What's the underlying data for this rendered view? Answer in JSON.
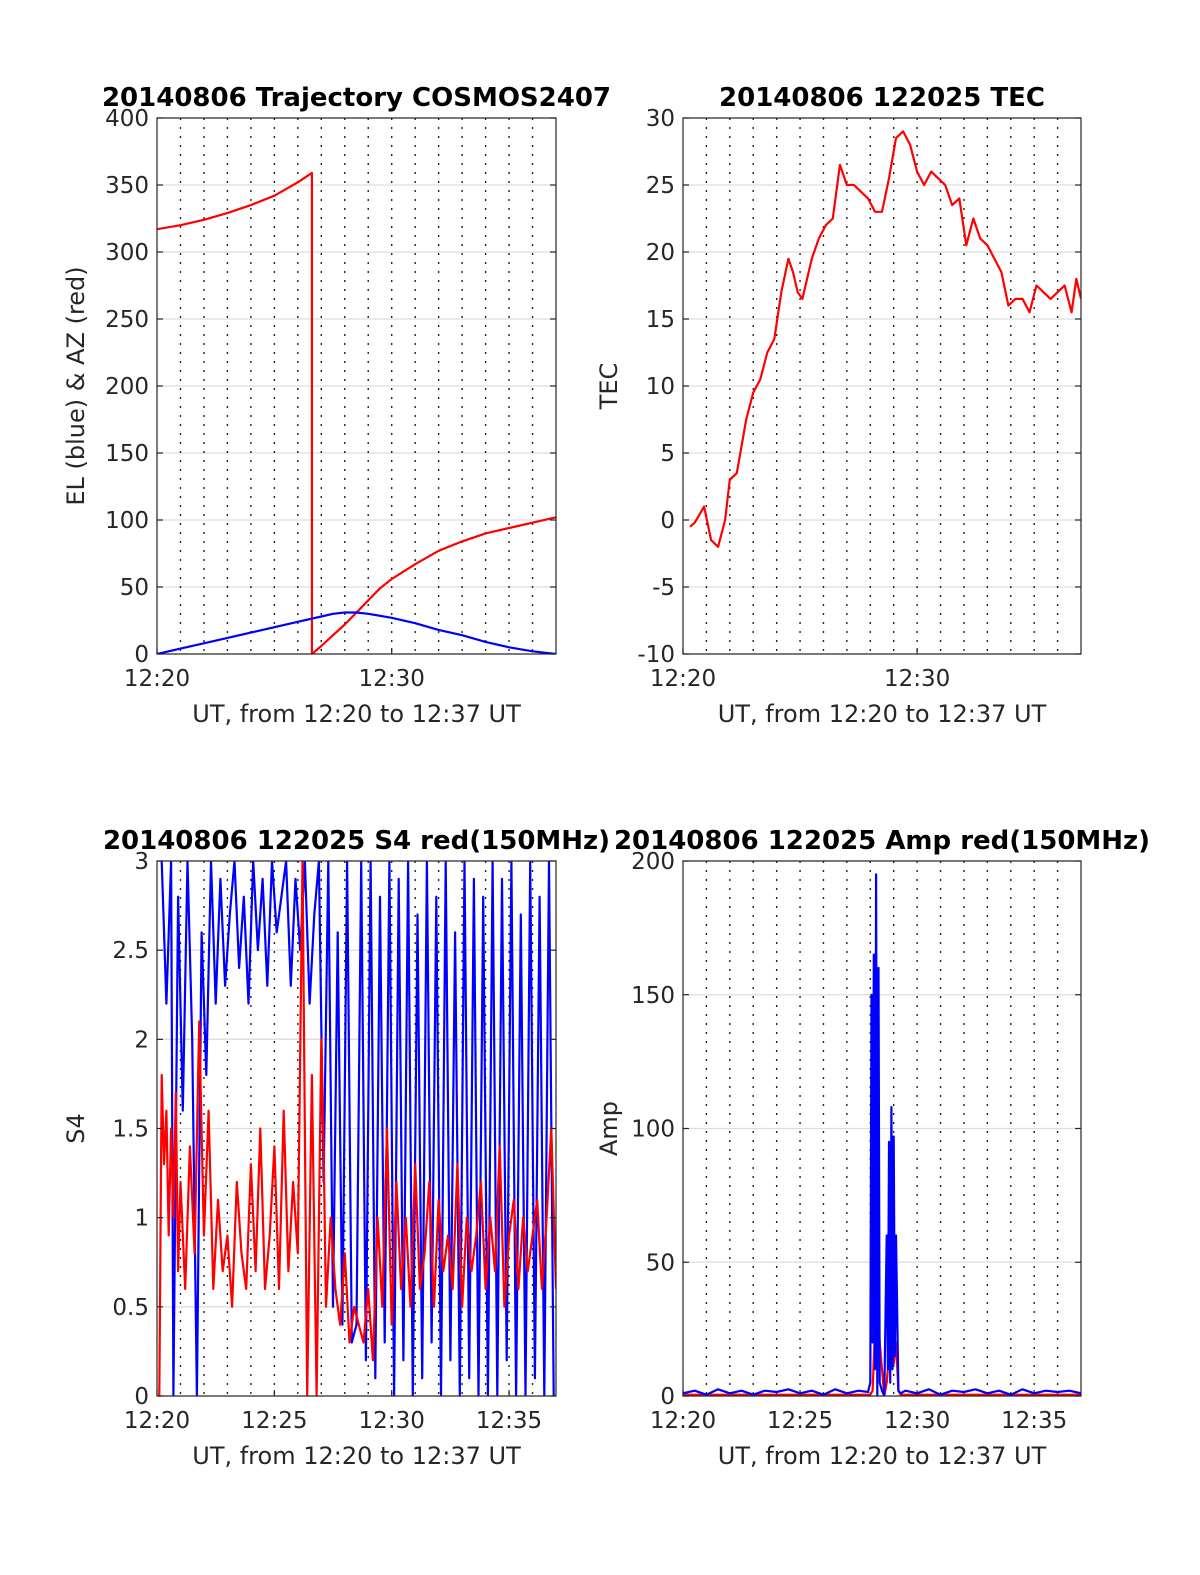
{
  "chart_data": [
    {
      "type": "line",
      "title": "20140806 Trajectory COSMOS2407",
      "xlabel": "UT, from 12:20 to 12:37 UT",
      "ylabel": "EL (blue) & AZ (red)",
      "xlim": [
        0,
        17
      ],
      "ylim": [
        0,
        400
      ],
      "xtick_values": [
        0,
        10
      ],
      "xtick_labels": [
        "12:20",
        "12:30"
      ],
      "ytick_values": [
        0,
        50,
        100,
        150,
        200,
        250,
        300,
        350,
        400
      ],
      "ytick_labels": [
        "0",
        "50",
        "100",
        "150",
        "200",
        "250",
        "300",
        "350",
        "400"
      ],
      "grid": true,
      "series": [
        {
          "color": "#ff0000",
          "x": [
            0,
            1,
            2,
            3,
            4,
            5,
            6,
            6.6,
            6.6,
            7,
            7.5,
            8,
            8.5,
            9,
            9.5,
            10,
            11,
            12,
            13,
            14,
            15,
            16,
            17
          ],
          "y": [
            317,
            320,
            324,
            329,
            335,
            342,
            352,
            359,
            0,
            6,
            14,
            22,
            31,
            40,
            49,
            56,
            67,
            77,
            84,
            90,
            94,
            98,
            102
          ]
        },
        {
          "color": "#0000ff",
          "x": [
            0,
            1,
            2,
            3,
            4,
            5,
            6,
            7,
            7.5,
            8,
            8.5,
            9,
            10,
            11,
            12,
            13,
            14,
            15,
            16,
            17
          ],
          "y": [
            0,
            4,
            8,
            12,
            16,
            20,
            24,
            28,
            30,
            31,
            31,
            30,
            27,
            23,
            18,
            14,
            9,
            5,
            2,
            0
          ]
        }
      ]
    },
    {
      "type": "line",
      "title": "20140806 122025 TEC",
      "xlabel": "UT, from 12:20 to 12:37 UT",
      "ylabel": "TEC",
      "xlim": [
        0,
        17
      ],
      "ylim": [
        -10,
        30
      ],
      "xtick_values": [
        0,
        10
      ],
      "xtick_labels": [
        "12:20",
        "12:30"
      ],
      "ytick_values": [
        -10,
        -5,
        0,
        5,
        10,
        15,
        20,
        25,
        30
      ],
      "ytick_labels": [
        "-10",
        "-5",
        "0",
        "5",
        "10",
        "15",
        "20",
        "25",
        "30"
      ],
      "grid": true,
      "series": [
        {
          "color": "#ff0000",
          "x": [
            0.3,
            0.5,
            0.9,
            1.2,
            1.5,
            1.8,
            2.0,
            2.3,
            2.5,
            2.7,
            3.0,
            3.3,
            3.6,
            3.9,
            4.2,
            4.5,
            4.7,
            4.9,
            5.1,
            5.3,
            5.5,
            5.8,
            6.1,
            6.4,
            6.7,
            7.0,
            7.3,
            7.6,
            7.9,
            8.2,
            8.5,
            8.8,
            9.1,
            9.4,
            9.7,
            10.0,
            10.3,
            10.6,
            10.9,
            11.2,
            11.5,
            11.8,
            12.1,
            12.4,
            12.7,
            13.0,
            13.3,
            13.6,
            13.9,
            14.2,
            14.5,
            14.8,
            15.1,
            15.4,
            15.7,
            16.0,
            16.3,
            16.6,
            16.8,
            17.0
          ],
          "y": [
            -0.5,
            -0.2,
            1.0,
            -1.5,
            -2.0,
            0.0,
            3.0,
            3.5,
            5.5,
            7.5,
            9.5,
            10.5,
            12.5,
            13.5,
            17.0,
            19.5,
            18.5,
            17.0,
            16.5,
            18.0,
            19.5,
            21.0,
            22.0,
            22.5,
            26.5,
            25.0,
            25.0,
            24.5,
            24.0,
            23.0,
            23.0,
            25.5,
            28.5,
            29.0,
            28.0,
            26.0,
            25.0,
            26.0,
            25.5,
            25.0,
            23.5,
            24.0,
            20.5,
            22.5,
            21.0,
            20.5,
            19.5,
            18.5,
            16.0,
            16.5,
            16.5,
            15.5,
            17.5,
            17.0,
            16.5,
            17.0,
            17.5,
            15.5,
            18.0,
            16.5
          ]
        }
      ]
    },
    {
      "type": "line",
      "title": "20140806 122025 S4 red(150MHz)",
      "xlabel": "UT, from 12:20 to 12:37 UT",
      "ylabel": "S4",
      "xlim": [
        0,
        17
      ],
      "ylim": [
        0,
        3
      ],
      "xtick_values": [
        0,
        5,
        10,
        15
      ],
      "xtick_labels": [
        "12:20",
        "12:25",
        "12:30",
        "12:35"
      ],
      "ytick_values": [
        0,
        0.5,
        1,
        1.5,
        2,
        2.5,
        3
      ],
      "ytick_labels": [
        "0",
        "0.5",
        "1",
        "1.5",
        "2",
        "2.5",
        "3"
      ],
      "grid": true,
      "series": [
        {
          "color": "#0000ff",
          "x": [
            0.2,
            0.4,
            0.6,
            0.7,
            0.9,
            1.1,
            1.3,
            1.5,
            1.7,
            1.9,
            2.1,
            2.3,
            2.5,
            2.7,
            2.9,
            3.1,
            3.3,
            3.5,
            3.7,
            3.9,
            4.1,
            4.3,
            4.5,
            4.7,
            4.9,
            5.1,
            5.3,
            5.5,
            5.7,
            5.9,
            6.1,
            6.3,
            6.5,
            6.7,
            6.9,
            7.1,
            7.3,
            7.5,
            7.7,
            7.9,
            8.1,
            8.3,
            8.5,
            8.7,
            8.9,
            9.1,
            9.3,
            9.5,
            9.7,
            9.9,
            10.1,
            10.3,
            10.5,
            10.7,
            10.9,
            11.1,
            11.3,
            11.5,
            11.7,
            11.9,
            12.1,
            12.3,
            12.5,
            12.7,
            12.9,
            13.1,
            13.3,
            13.5,
            13.7,
            13.9,
            14.1,
            14.3,
            14.5,
            14.7,
            14.9,
            15.1,
            15.3,
            15.5,
            15.7,
            15.9,
            16.1,
            16.3,
            16.5,
            16.7,
            16.9
          ],
          "y": [
            3.0,
            2.2,
            3.0,
            0.0,
            2.8,
            1.6,
            3.0,
            2.0,
            0.0,
            2.6,
            1.8,
            3.0,
            2.2,
            2.9,
            2.3,
            2.7,
            3.0,
            2.4,
            2.8,
            2.2,
            3.0,
            2.5,
            2.9,
            2.3,
            3.0,
            2.6,
            2.8,
            3.0,
            2.3,
            2.9,
            2.5,
            3.0,
            2.2,
            2.7,
            3.0,
            1.2,
            3.0,
            0.5,
            2.6,
            0.4,
            3.0,
            0.3,
            0.4,
            3.0,
            0.2,
            3.0,
            0.1,
            2.8,
            0.3,
            3.0,
            0.0,
            2.9,
            0.2,
            3.0,
            0.0,
            2.7,
            0.1,
            3.0,
            0.3,
            2.8,
            0.0,
            3.0,
            0.2,
            2.6,
            0.0,
            3.0,
            0.1,
            2.9,
            0.0,
            2.8,
            0.0,
            3.0,
            0.0,
            2.9,
            0.2,
            3.0,
            0.0,
            2.7,
            0.0,
            3.0,
            0.1,
            2.8,
            0.0,
            3.0,
            0.0
          ]
        },
        {
          "color": "#ff0000",
          "x": [
            0.1,
            0.2,
            0.3,
            0.4,
            0.5,
            0.6,
            0.7,
            0.8,
            0.9,
            1.0,
            1.2,
            1.4,
            1.6,
            1.8,
            2.0,
            2.2,
            2.4,
            2.6,
            2.8,
            3.0,
            3.2,
            3.4,
            3.6,
            3.8,
            4.0,
            4.2,
            4.4,
            4.6,
            4.8,
            5.0,
            5.2,
            5.4,
            5.6,
            5.8,
            6.0,
            6.2,
            6.4,
            6.6,
            6.8,
            7.0,
            7.1,
            7.2,
            7.4,
            7.6,
            7.8,
            8.0,
            8.2,
            8.4,
            8.6,
            8.8,
            9.0,
            9.2,
            9.4,
            9.6,
            9.8,
            10.0,
            10.2,
            10.4,
            10.6,
            10.8,
            11.0,
            11.2,
            11.4,
            11.6,
            11.8,
            12.0,
            12.2,
            12.4,
            12.6,
            12.8,
            13.0,
            13.2,
            13.4,
            13.6,
            13.8,
            14.0,
            14.2,
            14.4,
            14.6,
            14.8,
            15.0,
            15.2,
            15.4,
            15.6,
            15.8,
            16.0,
            16.2,
            16.4,
            16.6,
            16.8,
            17.0
          ],
          "y": [
            0.0,
            1.8,
            1.3,
            1.6,
            0.9,
            1.5,
            1.0,
            1.7,
            0.7,
            1.2,
            0.6,
            1.4,
            0.8,
            2.1,
            0.9,
            1.6,
            0.6,
            1.1,
            0.7,
            0.9,
            0.5,
            1.2,
            0.8,
            0.6,
            1.3,
            0.7,
            1.5,
            0.6,
            0.9,
            1.4,
            0.6,
            1.6,
            0.7,
            1.2,
            0.8,
            3.0,
            0.0,
            1.8,
            0.0,
            2.0,
            1.4,
            0.5,
            1.0,
            0.6,
            0.4,
            0.8,
            0.3,
            0.5,
            0.4,
            0.3,
            0.6,
            0.2,
            1.0,
            0.5,
            1.5,
            0.4,
            1.2,
            0.6,
            1.0,
            0.5,
            1.3,
            0.6,
            0.8,
            1.2,
            0.5,
            1.1,
            0.7,
            0.9,
            0.6,
            1.3,
            0.5,
            1.0,
            0.7,
            0.9,
            1.2,
            0.6,
            1.0,
            0.7,
            1.4,
            0.5,
            0.9,
            1.1,
            0.6,
            1.0,
            0.7,
            0.9,
            1.1,
            0.6,
            1.0,
            1.5,
            0.6
          ]
        }
      ]
    },
    {
      "type": "line",
      "title": "20140806 122025 Amp red(150MHz)",
      "xlabel": "UT, from 12:20 to 12:37 UT",
      "ylabel": "Amp",
      "xlim": [
        0,
        17
      ],
      "ylim": [
        0,
        200
      ],
      "xtick_values": [
        0,
        5,
        10,
        15
      ],
      "xtick_labels": [
        "12:20",
        "12:25",
        "12:30",
        "12:35"
      ],
      "ytick_values": [
        0,
        50,
        100,
        150,
        200
      ],
      "ytick_labels": [
        "0",
        "50",
        "100",
        "150",
        "200"
      ],
      "grid": true,
      "series": [
        {
          "color": "#ff0000",
          "x": [
            0,
            8.0,
            8.1,
            8.2,
            8.3,
            8.4,
            8.5,
            8.6,
            8.7,
            8.8,
            8.9,
            9.0,
            9.1,
            9.2,
            9.3,
            17
          ],
          "y": [
            0.5,
            0.5,
            2,
            25,
            40,
            20,
            10,
            0,
            5,
            15,
            28,
            12,
            20,
            2,
            0.5,
            0.5
          ]
        },
        {
          "color": "#0000ff",
          "x": [
            0,
            0.5,
            1,
            1.5,
            2,
            2.5,
            3,
            3.5,
            4,
            4.5,
            5,
            5.5,
            6,
            6.5,
            7,
            7.5,
            7.9,
            8.0,
            8.05,
            8.1,
            8.15,
            8.2,
            8.25,
            8.3,
            8.35,
            8.4,
            8.5,
            8.6,
            8.7,
            8.75,
            8.8,
            8.85,
            8.9,
            8.95,
            9.0,
            9.05,
            9.1,
            9.2,
            9.3,
            9.5,
            10,
            10.5,
            11,
            11.5,
            12,
            12.5,
            13,
            13.5,
            14,
            14.5,
            15,
            15.5,
            16,
            16.5,
            17
          ],
          "y": [
            1,
            2,
            0.5,
            2.5,
            1,
            2,
            0.5,
            2,
            1.5,
            2.5,
            1,
            2,
            0.5,
            2.5,
            1,
            2,
            1.5,
            5,
            150,
            20,
            165,
            10,
            195,
            0,
            160,
            5,
            2,
            0,
            60,
            10,
            95,
            5,
            108,
            10,
            97,
            15,
            60,
            2,
            1,
            2,
            1,
            2.5,
            0.5,
            2,
            1.5,
            2.5,
            1,
            2,
            0.5,
            2.5,
            1,
            2,
            1.5,
            2,
            1
          ]
        }
      ]
    }
  ]
}
